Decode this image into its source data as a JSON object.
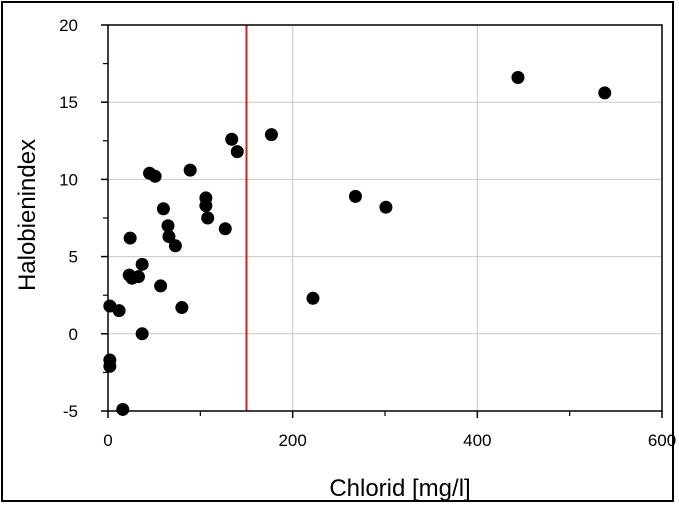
{
  "chart_data": {
    "type": "scatter",
    "title": "",
    "xlabel": "Chlorid [mg/l]",
    "ylabel": "Halobienindex",
    "xlim": [
      0,
      600
    ],
    "ylim": [
      -5,
      20
    ],
    "xticks": [
      0,
      200,
      400,
      600
    ],
    "yticks": [
      -5,
      0,
      5,
      10,
      15,
      20
    ],
    "xtick_labels": [
      "0",
      "200",
      "400",
      "600"
    ],
    "ytick_labels": [
      "-5",
      "0",
      "5",
      "10",
      "15",
      "20"
    ],
    "grid": true,
    "marker_color": "#000000",
    "reference_line": {
      "axis": "x",
      "value": 150,
      "color": "#cc2222"
    },
    "points": [
      {
        "x": 2,
        "y": -2.1
      },
      {
        "x": 2,
        "y": -1.7
      },
      {
        "x": 2,
        "y": 1.8
      },
      {
        "x": 12,
        "y": 1.5
      },
      {
        "x": 16,
        "y": -4.9
      },
      {
        "x": 23,
        "y": 3.8
      },
      {
        "x": 24,
        "y": 6.2
      },
      {
        "x": 26,
        "y": 3.6
      },
      {
        "x": 33,
        "y": 3.7
      },
      {
        "x": 37,
        "y": 4.5
      },
      {
        "x": 37,
        "y": 0.0
      },
      {
        "x": 45,
        "y": 10.4
      },
      {
        "x": 51,
        "y": 10.2
      },
      {
        "x": 57,
        "y": 3.1
      },
      {
        "x": 60,
        "y": 8.1
      },
      {
        "x": 65,
        "y": 7.0
      },
      {
        "x": 66,
        "y": 6.3
      },
      {
        "x": 73,
        "y": 5.7
      },
      {
        "x": 80,
        "y": 1.7
      },
      {
        "x": 89,
        "y": 10.6
      },
      {
        "x": 106,
        "y": 8.8
      },
      {
        "x": 106,
        "y": 8.3
      },
      {
        "x": 108,
        "y": 7.5
      },
      {
        "x": 127,
        "y": 6.8
      },
      {
        "x": 134,
        "y": 12.6
      },
      {
        "x": 140,
        "y": 11.8
      },
      {
        "x": 177,
        "y": 12.9
      },
      {
        "x": 222,
        "y": 2.3
      },
      {
        "x": 268,
        "y": 8.9
      },
      {
        "x": 301,
        "y": 8.2
      },
      {
        "x": 444,
        "y": 16.6
      },
      {
        "x": 538,
        "y": 15.6
      }
    ]
  }
}
